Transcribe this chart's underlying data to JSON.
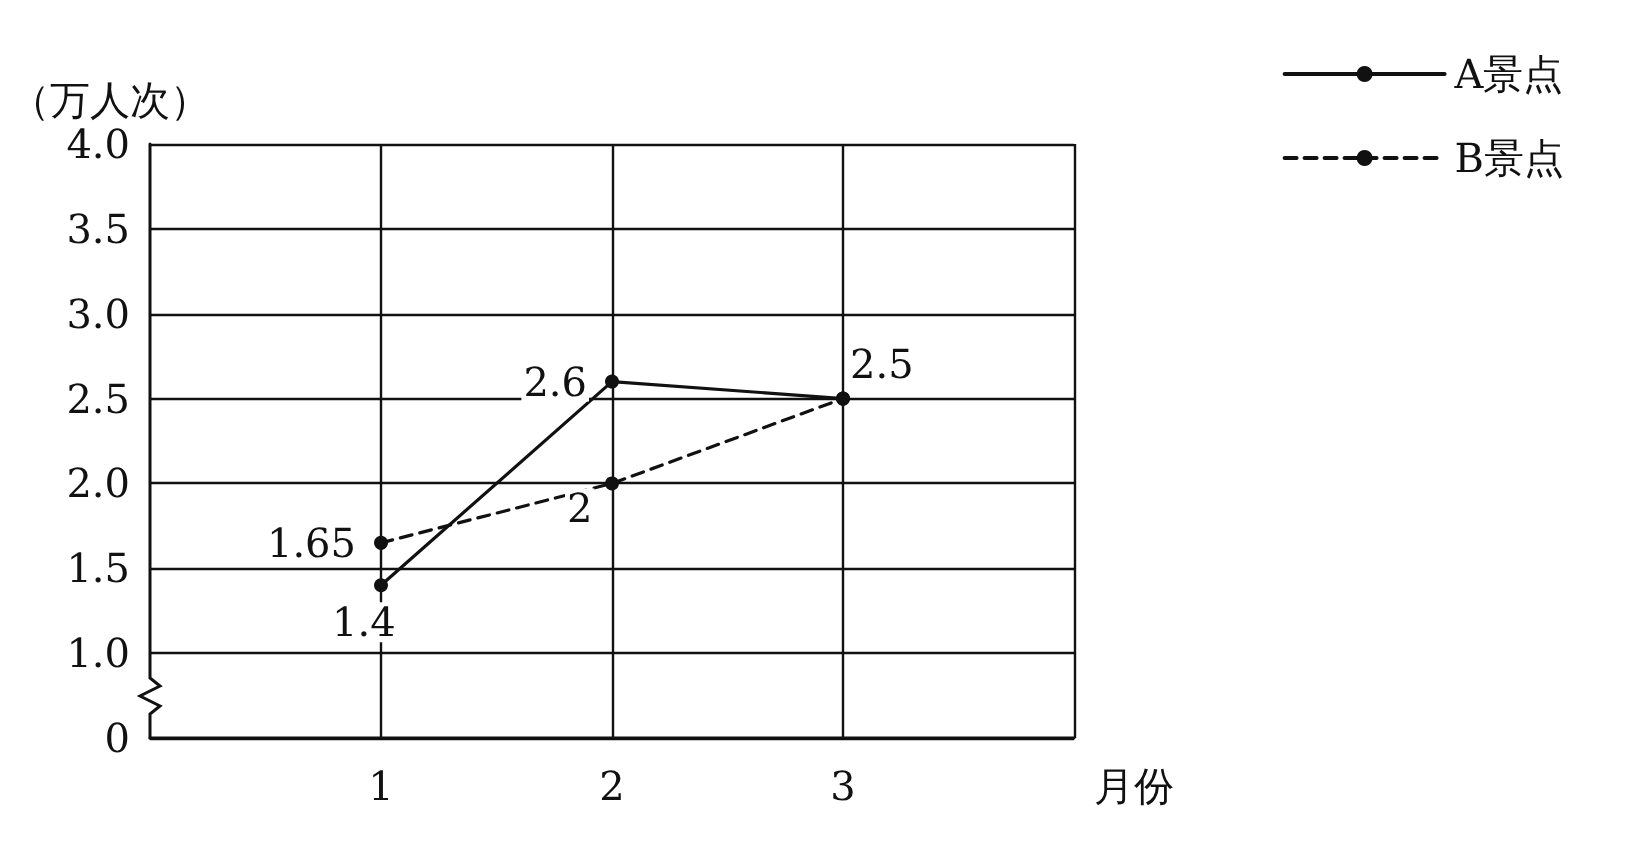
{
  "chart_data": {
    "type": "line",
    "ylabel": "（万人次）",
    "xlabel": "月份",
    "x": [
      1,
      2,
      3
    ],
    "series": [
      {
        "name": "A景点",
        "color": "#111111",
        "line_style": "solid",
        "values": [
          1.4,
          2.6,
          2.5
        ],
        "value_labels": [
          "1.4",
          "2.6",
          "2.5"
        ]
      },
      {
        "name": "B景点",
        "color": "#111111",
        "line_style": "dashed",
        "values": [
          1.65,
          2,
          2.5
        ],
        "value_labels": [
          "1.65",
          "2",
          null
        ]
      }
    ],
    "xlim": [
      0,
      4
    ],
    "xticks": [
      1,
      2,
      3,
      {
        "value": 4,
        "label": null
      }
    ],
    "ylim": [
      0.5,
      4
    ],
    "yticks": [
      {
        "value": 0.5,
        "label": "0"
      },
      {
        "value": 1,
        "label": "1.0"
      },
      {
        "value": 1.5,
        "label": "1.5"
      },
      {
        "value": 2,
        "label": "2.0"
      },
      {
        "value": 2.5,
        "label": "2.5"
      },
      {
        "value": 3,
        "label": "3.0"
      },
      {
        "value": 3.5,
        "label": "3.5"
      },
      {
        "value": 4,
        "label": "4.0"
      }
    ],
    "grid": true,
    "legend": "top right",
    "marker": "circle"
  }
}
